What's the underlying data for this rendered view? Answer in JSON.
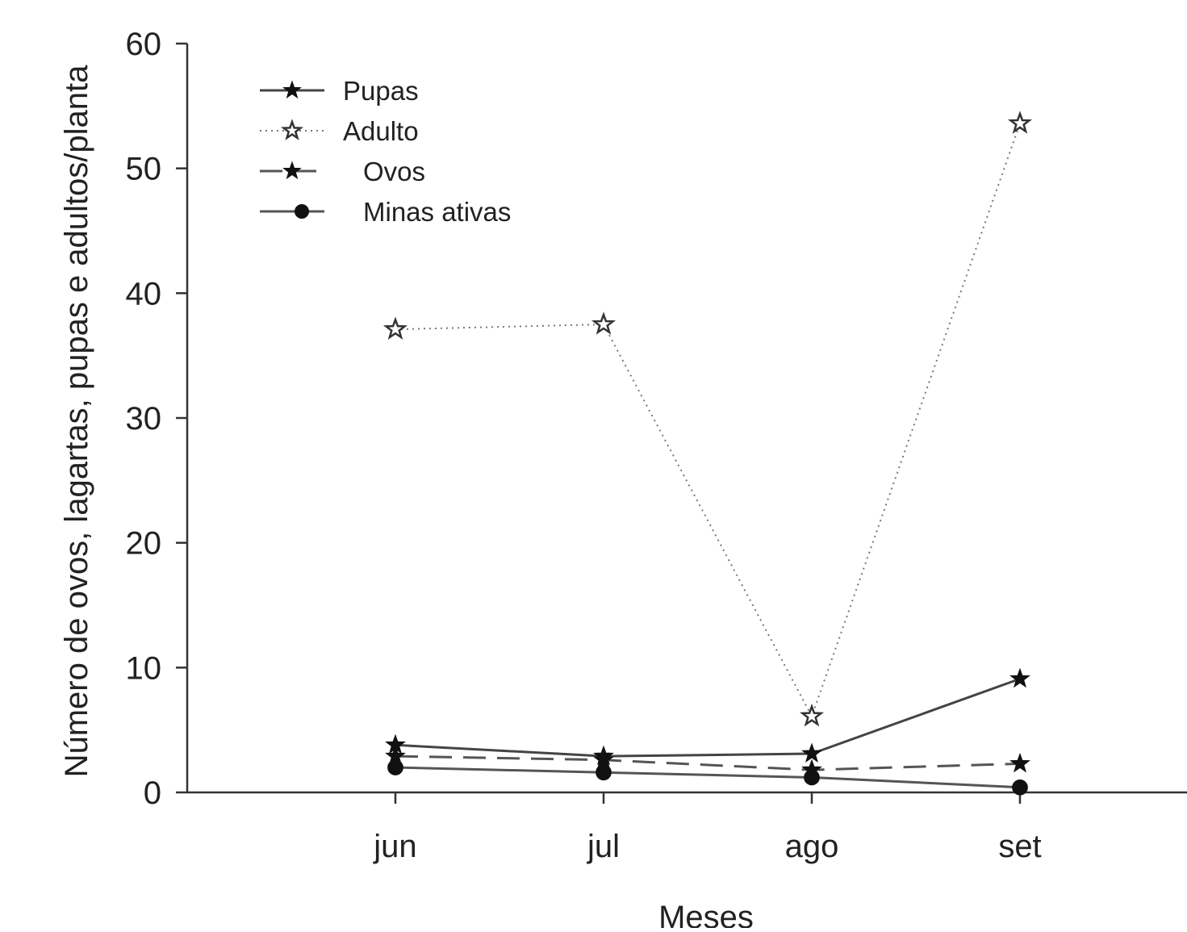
{
  "chart_data": {
    "type": "line",
    "title": "",
    "xlabel": "Meses",
    "ylabel": "Número de ovos, lagartas, pupas e adultos/planta",
    "categories": [
      "jun",
      "jul",
      "ago",
      "set"
    ],
    "ylim": [
      0,
      60
    ],
    "yticks": [
      0,
      10,
      20,
      30,
      40,
      50,
      60
    ],
    "grid": false,
    "legend_position": "top-left",
    "series": [
      {
        "name": "Pupas",
        "values": [
          3.8,
          2.9,
          3.1,
          9.1
        ],
        "line": "solid",
        "marker": "star-filled",
        "color": "#444444"
      },
      {
        "name": "Adulto",
        "values": [
          37.1,
          37.5,
          6.1,
          53.6
        ],
        "line": "dotted",
        "marker": "star-open",
        "color": "#777777"
      },
      {
        "name": "Ovos",
        "values": [
          2.9,
          2.6,
          1.8,
          2.3
        ],
        "line": "dashed",
        "marker": "star-filled",
        "color": "#555555"
      },
      {
        "name": "Minas ativas",
        "values": [
          2.0,
          1.6,
          1.2,
          0.4
        ],
        "line": "solid",
        "marker": "circle-filled",
        "color": "#555555"
      }
    ]
  }
}
